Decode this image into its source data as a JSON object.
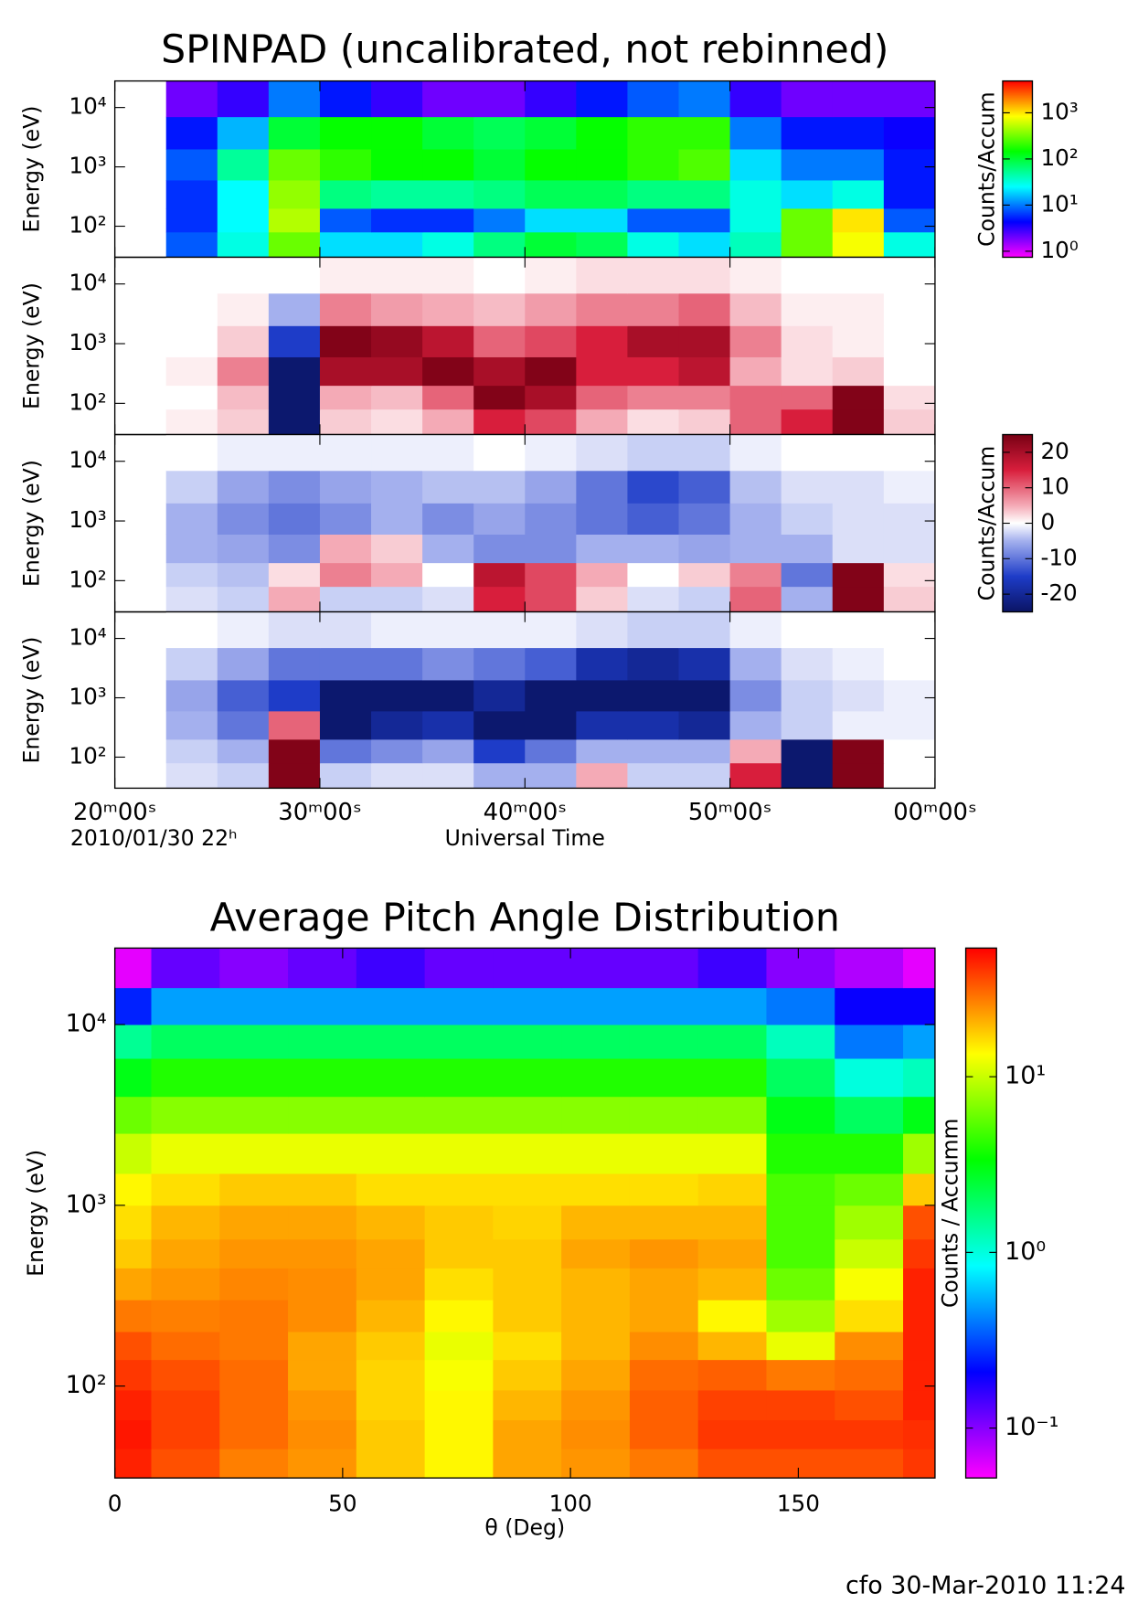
{
  "chart_data": [
    {
      "type": "heatmap",
      "title": "SPINPAD (uncalibrated, not rebinned)",
      "ylabel": "Energy (eV)",
      "log_y": true,
      "xlim": [
        20,
        60
      ],
      "xticks": [
        20,
        30,
        40,
        50,
        60
      ],
      "ylim": [
        30,
        28000
      ],
      "yticks": [
        {
          "value": 100,
          "label": "10²"
        },
        {
          "value": 1000,
          "label": "10³"
        },
        {
          "value": 10000,
          "label": "10⁴"
        }
      ],
      "x_bins": [
        20,
        22.5,
        25,
        27.5,
        30,
        32.5,
        35,
        37.5,
        40,
        42.5,
        45,
        47.5,
        50,
        52.5,
        55,
        57.5,
        60
      ],
      "y_bins": [
        30,
        80,
        200,
        600,
        2000,
        7000,
        28000
      ],
      "values": [
        [
          null,
          8,
          30,
          300,
          20,
          20,
          30,
          60,
          100,
          80,
          30,
          20,
          40,
          300,
          800,
          30
        ],
        [
          null,
          6,
          25,
          500,
          8,
          6,
          6,
          10,
          20,
          20,
          8,
          8,
          30,
          300,
          1000,
          8
        ],
        [
          null,
          6,
          25,
          400,
          60,
          50,
          50,
          60,
          80,
          80,
          60,
          60,
          30,
          20,
          30,
          5
        ],
        [
          null,
          8,
          50,
          300,
          200,
          150,
          150,
          100,
          150,
          150,
          200,
          250,
          20,
          10,
          10,
          5
        ],
        [
          null,
          5,
          15,
          100,
          150,
          150,
          100,
          80,
          100,
          150,
          200,
          200,
          10,
          5,
          5,
          4
        ],
        [
          null,
          2,
          3,
          10,
          5,
          3,
          2,
          2,
          3,
          5,
          8,
          10,
          3,
          2,
          2,
          2
        ]
      ],
      "colormap": "rainbow",
      "color_scale": "log",
      "clim": [
        0.74,
        4900
      ],
      "colorbar": {
        "label": "Counts/Accum",
        "ticks": [
          {
            "value": 1,
            "label": "10⁰"
          },
          {
            "value": 10,
            "label": "10¹"
          },
          {
            "value": 100,
            "label": "10²"
          },
          {
            "value": 1000,
            "label": "10³"
          }
        ]
      }
    },
    {
      "type": "heatmap",
      "ylabel": "Energy (eV)",
      "log_y": true,
      "xlim": [
        20,
        60
      ],
      "xticks": [
        20,
        30,
        40,
        50,
        60
      ],
      "ylim": [
        30,
        28000
      ],
      "yticks": [
        {
          "value": 100,
          "label": "10²"
        },
        {
          "value": 1000,
          "label": "10³"
        },
        {
          "value": 10000,
          "label": "10⁴"
        }
      ],
      "x_bins": [
        20,
        22.5,
        25,
        27.5,
        30,
        32.5,
        35,
        37.5,
        40,
        42.5,
        45,
        47.5,
        50,
        52.5,
        55,
        57.5,
        60
      ],
      "y_bins": [
        30,
        80,
        200,
        600,
        2000,
        7000,
        28000
      ],
      "values": [
        [
          null,
          1,
          3,
          -24,
          3,
          2,
          5,
          15,
          12,
          5,
          2,
          3,
          10,
          15,
          24,
          3
        ],
        [
          null,
          0,
          4,
          -24,
          5,
          4,
          10,
          24,
          20,
          10,
          8,
          8,
          10,
          10,
          24,
          2
        ],
        [
          null,
          1,
          8,
          -24,
          20,
          20,
          24,
          20,
          24,
          15,
          15,
          18,
          5,
          2,
          3,
          0
        ],
        [
          null,
          0,
          3,
          -15,
          24,
          22,
          18,
          10,
          12,
          15,
          20,
          20,
          8,
          2,
          1,
          0
        ],
        [
          null,
          0,
          1,
          -5,
          8,
          6,
          5,
          4,
          6,
          8,
          8,
          10,
          4,
          1,
          1,
          0
        ],
        [
          null,
          0,
          0,
          0,
          1,
          1,
          1,
          0,
          1,
          2,
          2,
          2,
          1,
          0,
          0,
          0
        ]
      ],
      "colormap": "diverging",
      "color_scale": "linear",
      "clim": [
        -25,
        25
      ]
    },
    {
      "type": "heatmap",
      "ylabel": "Energy (eV)",
      "log_y": true,
      "xlim": [
        20,
        60
      ],
      "xticks": [
        20,
        30,
        40,
        50,
        60
      ],
      "ylim": [
        30,
        28000
      ],
      "yticks": [
        {
          "value": 100,
          "label": "10²"
        },
        {
          "value": 1000,
          "label": "10³"
        },
        {
          "value": 10000,
          "label": "10⁴"
        }
      ],
      "x_bins": [
        20,
        22.5,
        25,
        27.5,
        30,
        32.5,
        35,
        37.5,
        40,
        42.5,
        45,
        47.5,
        50,
        52.5,
        55,
        57.5,
        60
      ],
      "y_bins": [
        30,
        80,
        200,
        600,
        2000,
        7000,
        28000
      ],
      "values": [
        [
          null,
          -2,
          -3,
          5,
          -3,
          -3,
          -2,
          15,
          12,
          3,
          -2,
          -3,
          10,
          -5,
          24,
          3
        ],
        [
          null,
          -3,
          -4,
          2,
          8,
          5,
          0,
          18,
          12,
          5,
          0,
          3,
          8,
          -10,
          24,
          2
        ],
        [
          null,
          -5,
          -6,
          -8,
          5,
          3,
          -5,
          -8,
          -8,
          -5,
          -5,
          -6,
          -5,
          -5,
          -2,
          -2
        ],
        [
          null,
          -5,
          -8,
          -10,
          -8,
          -5,
          -8,
          -6,
          -8,
          -10,
          -12,
          -10,
          -5,
          -3,
          -2,
          -2
        ],
        [
          null,
          -3,
          -6,
          -8,
          -6,
          -5,
          -4,
          -4,
          -6,
          -10,
          -14,
          -12,
          -4,
          -2,
          -2,
          -1
        ],
        [
          null,
          0,
          -1,
          -1,
          -1,
          -1,
          -1,
          0,
          -1,
          -2,
          -3,
          -3,
          -1,
          0,
          0,
          0
        ]
      ],
      "colormap": "diverging",
      "color_scale": "linear",
      "clim": [
        -25,
        25
      ],
      "colorbar": {
        "label": "Counts/Accum",
        "ticks": [
          20,
          10,
          0,
          -10,
          -20
        ]
      }
    },
    {
      "type": "heatmap",
      "ylabel": "Energy (eV)",
      "log_y": true,
      "xlabel": "Universal Time",
      "annotation": "2010/01/30 22ʰ",
      "xlim": [
        20,
        60
      ],
      "xticks": [
        {
          "value": 20,
          "label": "20ᵐ00ˢ"
        },
        {
          "value": 30,
          "label": "30ᵐ00ˢ"
        },
        {
          "value": 40,
          "label": "40ᵐ00ˢ"
        },
        {
          "value": 50,
          "label": "50ᵐ00ˢ"
        },
        {
          "value": 60,
          "label": "00ᵐ00ˢ"
        }
      ],
      "ylim": [
        30,
        28000
      ],
      "yticks": [
        {
          "value": 100,
          "label": "10²"
        },
        {
          "value": 1000,
          "label": "10³"
        },
        {
          "value": 10000,
          "label": "10⁴"
        }
      ],
      "x_bins": [
        20,
        22.5,
        25,
        27.5,
        30,
        32.5,
        35,
        37.5,
        40,
        42.5,
        45,
        47.5,
        50,
        52.5,
        55,
        57.5,
        60
      ],
      "y_bins": [
        30,
        80,
        200,
        600,
        2000,
        7000,
        28000
      ],
      "values": [
        [
          null,
          -2,
          -3,
          24,
          -3,
          -2,
          -2,
          -5,
          -5,
          5,
          -3,
          -3,
          15,
          -24,
          24,
          0
        ],
        [
          null,
          -3,
          -5,
          24,
          -10,
          -8,
          -6,
          -15,
          -10,
          -5,
          -5,
          -5,
          5,
          -24,
          24,
          0
        ],
        [
          null,
          -5,
          -10,
          10,
          -24,
          -20,
          -18,
          -24,
          -24,
          -18,
          -18,
          -20,
          -5,
          -3,
          -1,
          -1
        ],
        [
          null,
          -6,
          -12,
          -15,
          -24,
          -24,
          -24,
          -20,
          -24,
          -24,
          -24,
          -24,
          -8,
          -3,
          -2,
          -1
        ],
        [
          null,
          -3,
          -6,
          -10,
          -10,
          -10,
          -8,
          -10,
          -12,
          -18,
          -20,
          -18,
          -5,
          -2,
          -1,
          0
        ],
        [
          null,
          0,
          -1,
          -2,
          -2,
          -1,
          -1,
          -1,
          -1,
          -2,
          -3,
          -3,
          -1,
          0,
          0,
          0
        ]
      ],
      "colormap": "diverging",
      "color_scale": "linear",
      "clim": [
        -25,
        25
      ]
    },
    {
      "type": "heatmap",
      "title": "Average Pitch Angle Distribution",
      "ylabel": "Energy (eV)",
      "xlabel": "θ (Deg)",
      "log_y": true,
      "xlim": [
        0,
        180
      ],
      "xticks": [
        0,
        50,
        100,
        150
      ],
      "ylim": [
        31,
        26500
      ],
      "yticks": [
        {
          "value": 100,
          "label": "10²"
        },
        {
          "value": 1000,
          "label": "10³"
        },
        {
          "value": 10000,
          "label": "10⁴"
        }
      ],
      "x_bins": [
        0,
        8,
        23,
        38,
        53,
        68,
        83,
        98,
        113,
        128,
        143,
        158,
        173,
        180
      ],
      "y_bins": [
        31,
        45,
        65,
        95,
        140,
        200,
        300,
        450,
        650,
        1000,
        1500,
        2500,
        4000,
        6500,
        10000,
        16000,
        26500
      ],
      "values": [
        [
          45,
          35,
          27,
          24,
          18,
          14,
          22,
          24,
          28,
          35,
          35,
          35,
          40
        ],
        [
          48,
          38,
          30,
          25,
          18,
          14,
          22,
          25,
          32,
          40,
          40,
          40,
          42
        ],
        [
          45,
          38,
          30,
          24,
          17,
          14,
          20,
          24,
          32,
          38,
          38,
          35,
          45
        ],
        [
          40,
          35,
          30,
          22,
          17,
          13,
          18,
          22,
          30,
          32,
          28,
          30,
          45
        ],
        [
          35,
          30,
          28,
          22,
          18,
          12,
          16,
          20,
          25,
          20,
          12,
          25,
          45
        ],
        [
          28,
          27,
          28,
          25,
          20,
          14,
          18,
          20,
          22,
          14,
          8,
          16,
          45
        ],
        [
          22,
          24,
          26,
          25,
          22,
          16,
          18,
          20,
          22,
          20,
          6,
          13,
          45
        ],
        [
          18,
          22,
          24,
          24,
          22,
          18,
          18,
          22,
          24,
          22,
          5,
          10,
          40
        ],
        [
          16,
          20,
          22,
          22,
          20,
          18,
          17,
          20,
          20,
          20,
          5,
          8,
          35
        ],
        [
          14,
          16,
          18,
          18,
          16,
          16,
          16,
          16,
          16,
          17,
          5,
          6,
          18
        ],
        [
          10,
          12,
          12,
          12,
          12,
          12,
          12,
          12,
          12,
          12,
          4,
          4,
          8
        ],
        [
          6,
          7,
          7,
          7,
          7,
          7,
          7,
          7,
          7,
          7,
          3,
          2,
          3
        ],
        [
          3,
          4,
          4,
          4,
          4,
          4,
          4,
          4,
          4,
          4,
          2,
          1,
          1.2
        ],
        [
          1.5,
          2,
          2,
          2,
          2,
          2,
          2,
          2,
          2,
          2,
          1.2,
          0.4,
          0.5
        ],
        [
          0.25,
          0.5,
          0.5,
          0.5,
          0.5,
          0.5,
          0.5,
          0.5,
          0.5,
          0.5,
          0.4,
          0.2,
          0.2
        ],
        [
          0.06,
          0.12,
          0.1,
          0.12,
          0.15,
          0.12,
          0.12,
          0.12,
          0.12,
          0.15,
          0.1,
          0.08,
          0.06
        ]
      ],
      "colormap": "rainbow",
      "color_scale": "log",
      "clim": [
        0.052,
        54
      ],
      "colorbar": {
        "label": "Counts / Accumm",
        "ticks": [
          {
            "value": 0.1,
            "label": "10⁻¹"
          },
          {
            "value": 1,
            "label": "10⁰"
          },
          {
            "value": 10,
            "label": "10¹"
          }
        ]
      }
    }
  ],
  "footer": "cfo 30-Mar-2010 11:24"
}
